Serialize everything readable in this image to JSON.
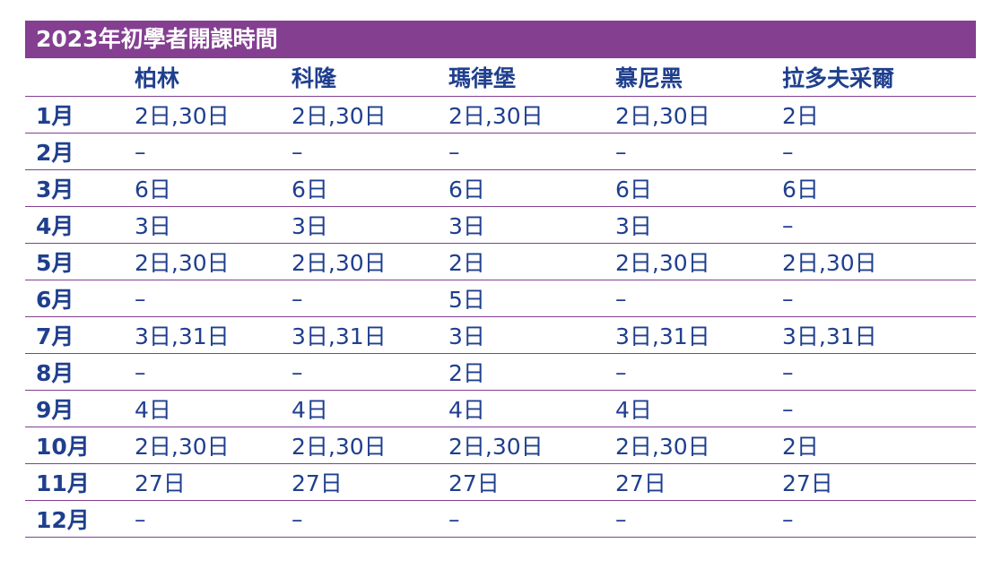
{
  "title": "2023年初學者開課時間",
  "columns": [
    "",
    "柏林",
    "科隆",
    "瑪律堡",
    "慕尼黑",
    "拉多夫采爾"
  ],
  "rows": [
    {
      "month": "1月",
      "values": [
        "2日,30日",
        "2日,30日",
        "2日,30日",
        "2日,30日",
        "2日"
      ]
    },
    {
      "month": "2月",
      "values": [
        "–",
        "–",
        "–",
        "–",
        "–"
      ]
    },
    {
      "month": "3月",
      "values": [
        "6日",
        "6日",
        "6日",
        "6日",
        "6日"
      ]
    },
    {
      "month": "4月",
      "values": [
        "3日",
        "3日",
        "3日",
        "3日",
        "–"
      ]
    },
    {
      "month": "5月",
      "values": [
        "2日,30日",
        "2日,30日",
        "2日",
        "2日,30日",
        "2日,30日"
      ]
    },
    {
      "month": "6月",
      "values": [
        "–",
        "–",
        "5日",
        "–",
        "–"
      ]
    },
    {
      "month": "7月",
      "values": [
        "3日,31日",
        "3日,31日",
        "3日",
        "3日,31日",
        "3日,31日"
      ]
    },
    {
      "month": "8月",
      "values": [
        "–",
        "–",
        "2日",
        "–",
        "–"
      ]
    },
    {
      "month": "9月",
      "values": [
        "4日",
        "4日",
        "4日",
        "4日",
        "–"
      ]
    },
    {
      "month": "10月",
      "values": [
        "2日,30日",
        "2日,30日",
        "2日,30日",
        "2日,30日",
        "2日"
      ]
    },
    {
      "month": "11月",
      "values": [
        "27日",
        "27日",
        "27日",
        "27日",
        "27日"
      ]
    },
    {
      "month": "12月",
      "values": [
        "–",
        "–",
        "–",
        "–",
        "–"
      ]
    }
  ],
  "colors": {
    "accent": "#843f91",
    "text": "#1f3f8e",
    "title_text": "#ffffff"
  }
}
